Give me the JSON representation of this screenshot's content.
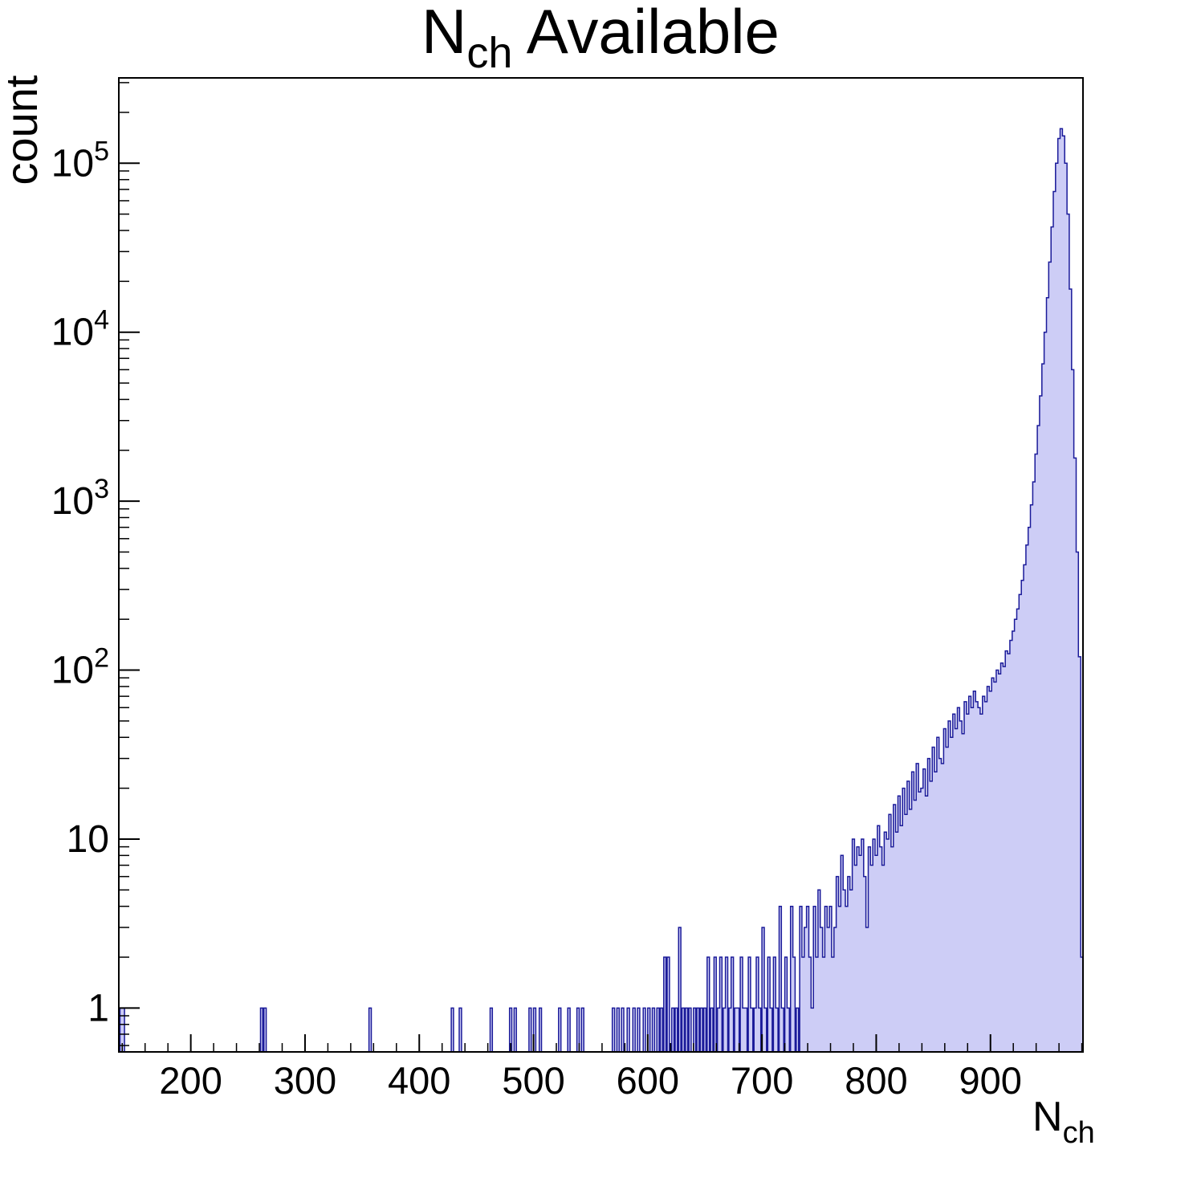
{
  "title": {
    "base": "N",
    "sub": "ch",
    "rest": " Available"
  },
  "y_axis_label": "count",
  "x_axis_label": {
    "base": "N",
    "sub": "ch"
  },
  "style": {
    "background": "#ffffff",
    "frame_color": "#000000",
    "line_color": "#1a1a99",
    "fill_color": "#cdcdf6"
  },
  "chart_data": {
    "type": "bar",
    "subtype": "histogram",
    "title": "N_ch Available",
    "xlabel": "N_ch",
    "ylabel": "count",
    "yscale": "log",
    "grid": false,
    "legend": null,
    "xlim": [
      137,
      981
    ],
    "ylim": [
      0.55,
      320000
    ],
    "x_major_ticks": [
      200,
      300,
      400,
      500,
      600,
      700,
      800,
      900
    ],
    "x_minor_step": 20,
    "y_major_ticks": [
      1,
      10,
      100,
      1000,
      10000,
      100000
    ],
    "bin_width": 2,
    "bins": [
      [
        139,
        1
      ],
      [
        141,
        1
      ],
      [
        262,
        1
      ],
      [
        265,
        1
      ],
      [
        357,
        1
      ],
      [
        429,
        1
      ],
      [
        436,
        1
      ],
      [
        463,
        1
      ],
      [
        480,
        1
      ],
      [
        484,
        1
      ],
      [
        497,
        1
      ],
      [
        501,
        1
      ],
      [
        506,
        1
      ],
      [
        523,
        1
      ],
      [
        531,
        1
      ],
      [
        539,
        1
      ],
      [
        543,
        1
      ],
      [
        570,
        1
      ],
      [
        574,
        1
      ],
      [
        578,
        1
      ],
      [
        583,
        1
      ],
      [
        588,
        1
      ],
      [
        592,
        1
      ],
      [
        597,
        1
      ],
      [
        601,
        1
      ],
      [
        605,
        1
      ],
      [
        609,
        1
      ],
      [
        612,
        1
      ],
      [
        615,
        2
      ],
      [
        618,
        2
      ],
      [
        622,
        1
      ],
      [
        625,
        1
      ],
      [
        628,
        3
      ],
      [
        631,
        1
      ],
      [
        634,
        1
      ],
      [
        637,
        1
      ],
      [
        641,
        1
      ],
      [
        644,
        1
      ],
      [
        647,
        1
      ],
      [
        650,
        1
      ],
      [
        653,
        2
      ],
      [
        656,
        1
      ],
      [
        659,
        2
      ],
      [
        662,
        1
      ],
      [
        664,
        2
      ],
      [
        667,
        1
      ],
      [
        669,
        2
      ],
      [
        672,
        1
      ],
      [
        674,
        2
      ],
      [
        677,
        1
      ],
      [
        679,
        1
      ],
      [
        682,
        2
      ],
      [
        684,
        1
      ],
      [
        686,
        1
      ],
      [
        689,
        2
      ],
      [
        691,
        1
      ],
      [
        694,
        1
      ],
      [
        696,
        2
      ],
      [
        698,
        1
      ],
      [
        701,
        3
      ],
      [
        703,
        1
      ],
      [
        706,
        2
      ],
      [
        708,
        1
      ],
      [
        711,
        2
      ],
      [
        713,
        1
      ],
      [
        716,
        4
      ],
      [
        718,
        1
      ],
      [
        721,
        2
      ],
      [
        723,
        1
      ],
      [
        726,
        4
      ],
      [
        728,
        2
      ],
      [
        731,
        1
      ],
      [
        734,
        4
      ],
      [
        736,
        2
      ],
      [
        738,
        3
      ],
      [
        740,
        4
      ],
      [
        742,
        2
      ],
      [
        744,
        1
      ],
      [
        746,
        4
      ],
      [
        748,
        2
      ],
      [
        750,
        5
      ],
      [
        752,
        3
      ],
      [
        754,
        2
      ],
      [
        756,
        4
      ],
      [
        758,
        3
      ],
      [
        760,
        4
      ],
      [
        762,
        2
      ],
      [
        764,
        3
      ],
      [
        766,
        6
      ],
      [
        768,
        4
      ],
      [
        770,
        8
      ],
      [
        772,
        5
      ],
      [
        774,
        4
      ],
      [
        776,
        6
      ],
      [
        778,
        5
      ],
      [
        780,
        10
      ],
      [
        782,
        7
      ],
      [
        784,
        9
      ],
      [
        786,
        8
      ],
      [
        788,
        10
      ],
      [
        790,
        6
      ],
      [
        792,
        3
      ],
      [
        794,
        9
      ],
      [
        796,
        7
      ],
      [
        798,
        10
      ],
      [
        800,
        8
      ],
      [
        802,
        12
      ],
      [
        804,
        9
      ],
      [
        806,
        7
      ],
      [
        808,
        11
      ],
      [
        810,
        10
      ],
      [
        812,
        14
      ],
      [
        814,
        9
      ],
      [
        816,
        16
      ],
      [
        818,
        11
      ],
      [
        820,
        18
      ],
      [
        822,
        12
      ],
      [
        824,
        20
      ],
      [
        826,
        14
      ],
      [
        828,
        22
      ],
      [
        830,
        15
      ],
      [
        832,
        25
      ],
      [
        834,
        17
      ],
      [
        836,
        28
      ],
      [
        838,
        19
      ],
      [
        840,
        20
      ],
      [
        842,
        26
      ],
      [
        844,
        18
      ],
      [
        846,
        30
      ],
      [
        848,
        22
      ],
      [
        850,
        35
      ],
      [
        852,
        25
      ],
      [
        854,
        40
      ],
      [
        856,
        30
      ],
      [
        858,
        28
      ],
      [
        860,
        45
      ],
      [
        862,
        35
      ],
      [
        864,
        50
      ],
      [
        866,
        40
      ],
      [
        868,
        55
      ],
      [
        870,
        45
      ],
      [
        872,
        60
      ],
      [
        874,
        50
      ],
      [
        876,
        42
      ],
      [
        878,
        65
      ],
      [
        880,
        55
      ],
      [
        882,
        70
      ],
      [
        884,
        60
      ],
      [
        886,
        75
      ],
      [
        888,
        65
      ],
      [
        890,
        60
      ],
      [
        892,
        55
      ],
      [
        894,
        70
      ],
      [
        896,
        65
      ],
      [
        898,
        80
      ],
      [
        900,
        75
      ],
      [
        902,
        90
      ],
      [
        904,
        85
      ],
      [
        906,
        100
      ],
      [
        908,
        95
      ],
      [
        910,
        110
      ],
      [
        912,
        105
      ],
      [
        914,
        130
      ],
      [
        916,
        125
      ],
      [
        918,
        150
      ],
      [
        920,
        170
      ],
      [
        922,
        200
      ],
      [
        924,
        230
      ],
      [
        926,
        280
      ],
      [
        928,
        340
      ],
      [
        930,
        420
      ],
      [
        932,
        550
      ],
      [
        934,
        700
      ],
      [
        936,
        950
      ],
      [
        938,
        1300
      ],
      [
        940,
        1900
      ],
      [
        942,
        2800
      ],
      [
        944,
        4200
      ],
      [
        946,
        6500
      ],
      [
        948,
        10000
      ],
      [
        950,
        16000
      ],
      [
        952,
        26000
      ],
      [
        954,
        42000
      ],
      [
        956,
        68000
      ],
      [
        958,
        100000
      ],
      [
        960,
        140000
      ],
      [
        962,
        160000
      ],
      [
        964,
        145000
      ],
      [
        966,
        100000
      ],
      [
        968,
        50000
      ],
      [
        970,
        18000
      ],
      [
        972,
        6000
      ],
      [
        974,
        1800
      ],
      [
        976,
        500
      ],
      [
        978,
        120
      ],
      [
        980,
        2
      ]
    ]
  }
}
